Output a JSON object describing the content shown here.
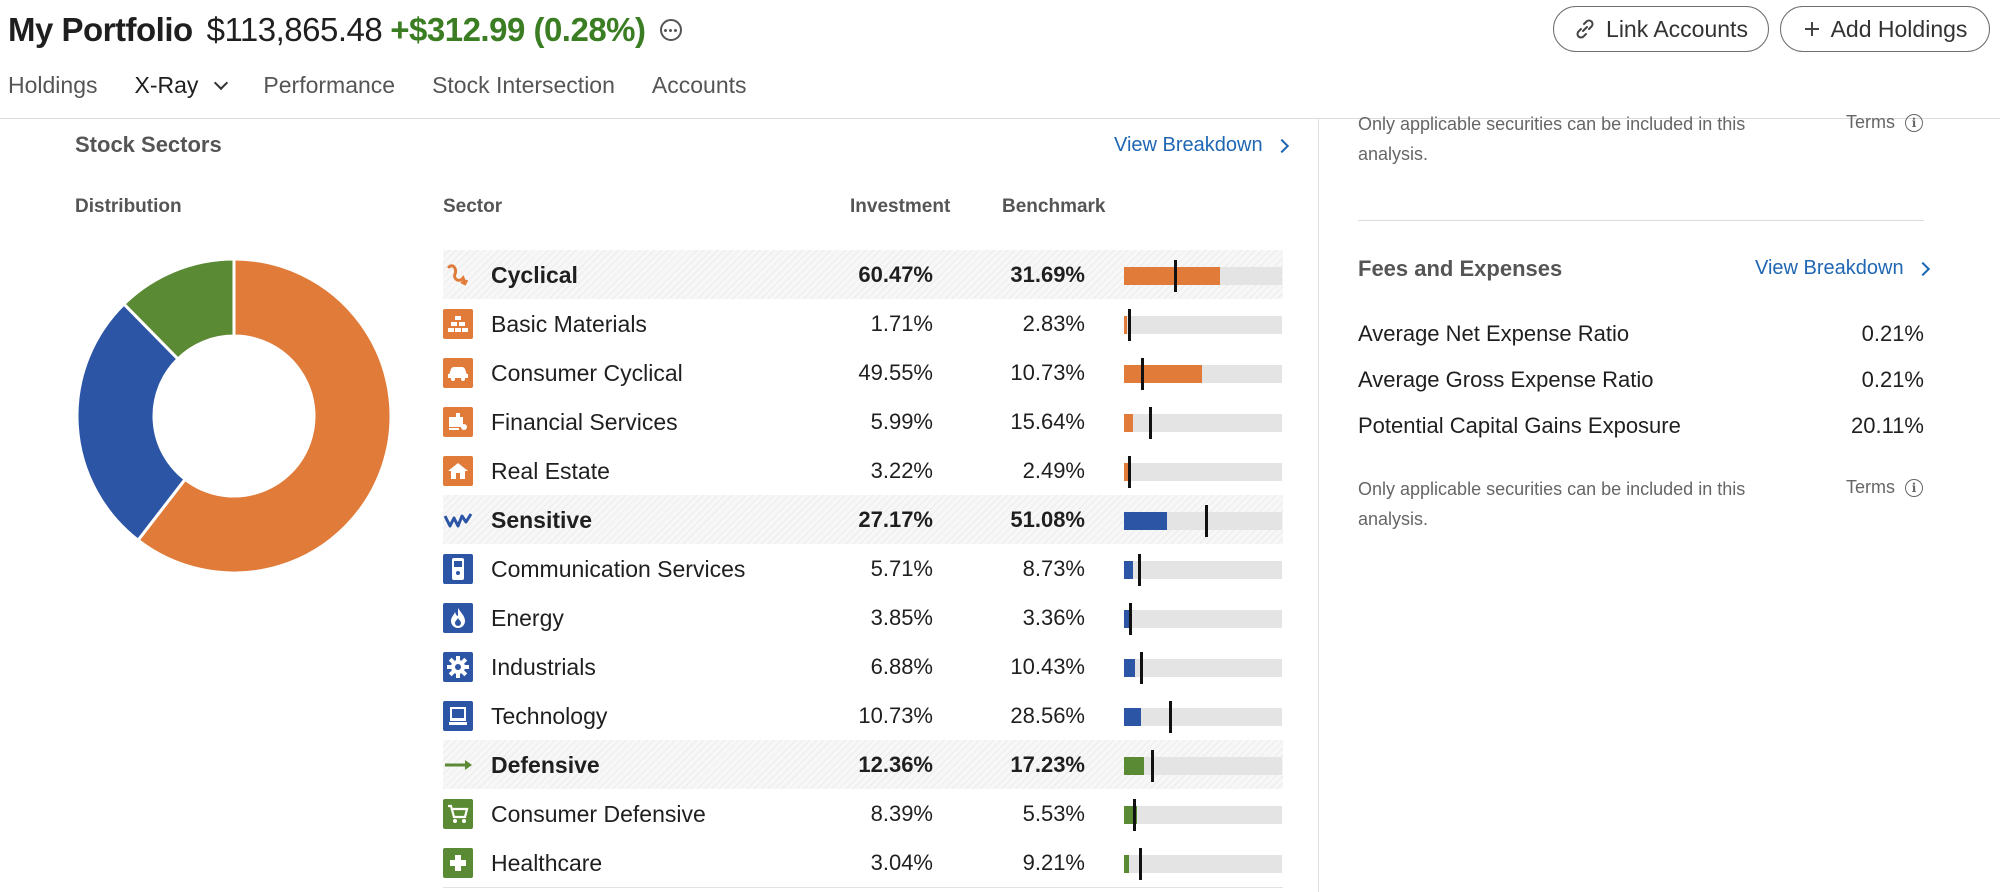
{
  "portfolio": {
    "name": "My Portfolio",
    "value": "$113,865.48",
    "change": "+$312.99 (0.28%)"
  },
  "header_buttons": {
    "link_accounts": "Link Accounts",
    "add_holdings": "Add Holdings"
  },
  "tabs": [
    {
      "label": "Holdings"
    },
    {
      "label": "X-Ray"
    },
    {
      "label": "Performance"
    },
    {
      "label": "Stock Intersection"
    },
    {
      "label": "Accounts"
    }
  ],
  "stock_sectors": {
    "title": "Stock Sectors",
    "view_breakdown": "View Breakdown",
    "distribution_label": "Distribution",
    "col_sector": "Sector",
    "col_investment": "Investment",
    "col_benchmark": "Benchmark"
  },
  "colors": {
    "cyclical": "#e07b39",
    "sensitive": "#2d55a6",
    "defensive": "#5b8a34",
    "positive_change": "#3b7d23",
    "link": "#1f66b3"
  },
  "sectors": [
    {
      "name": "Cyclical",
      "investment": "60.47%",
      "benchmark": "31.69%",
      "inv_value": 60.47,
      "bm_value": 31.69,
      "group": "cyclical",
      "header": true,
      "icon": "cyclical-icon"
    },
    {
      "name": "Basic Materials",
      "investment": "1.71%",
      "benchmark": "2.83%",
      "inv_value": 1.71,
      "bm_value": 2.83,
      "group": "cyclical",
      "header": false,
      "icon": "basic-materials-icon"
    },
    {
      "name": "Consumer Cyclical",
      "investment": "49.55%",
      "benchmark": "10.73%",
      "inv_value": 49.55,
      "bm_value": 10.73,
      "group": "cyclical",
      "header": false,
      "icon": "car-icon"
    },
    {
      "name": "Financial Services",
      "investment": "5.99%",
      "benchmark": "15.64%",
      "inv_value": 5.99,
      "bm_value": 15.64,
      "group": "cyclical",
      "header": false,
      "icon": "financial-services-icon"
    },
    {
      "name": "Real Estate",
      "investment": "3.22%",
      "benchmark": "2.49%",
      "inv_value": 3.22,
      "bm_value": 2.49,
      "group": "cyclical",
      "header": false,
      "icon": "house-icon"
    },
    {
      "name": "Sensitive",
      "investment": "27.17%",
      "benchmark": "51.08%",
      "inv_value": 27.17,
      "bm_value": 51.08,
      "group": "sensitive",
      "header": true,
      "icon": "sensitive-icon"
    },
    {
      "name": "Communication Services",
      "investment": "5.71%",
      "benchmark": "8.73%",
      "inv_value": 5.71,
      "bm_value": 8.73,
      "group": "sensitive",
      "header": false,
      "icon": "phone-icon"
    },
    {
      "name": "Energy",
      "investment": "3.85%",
      "benchmark": "3.36%",
      "inv_value": 3.85,
      "bm_value": 3.36,
      "group": "sensitive",
      "header": false,
      "icon": "flame-icon"
    },
    {
      "name": "Industrials",
      "investment": "6.88%",
      "benchmark": "10.43%",
      "inv_value": 6.88,
      "bm_value": 10.43,
      "group": "sensitive",
      "header": false,
      "icon": "gear-icon"
    },
    {
      "name": "Technology",
      "investment": "10.73%",
      "benchmark": "28.56%",
      "inv_value": 10.73,
      "bm_value": 28.56,
      "group": "sensitive",
      "header": false,
      "icon": "computer-icon"
    },
    {
      "name": "Defensive",
      "investment": "12.36%",
      "benchmark": "17.23%",
      "inv_value": 12.36,
      "bm_value": 17.23,
      "group": "defensive",
      "header": true,
      "icon": "defensive-arrow-icon"
    },
    {
      "name": "Consumer Defensive",
      "investment": "8.39%",
      "benchmark": "5.53%",
      "inv_value": 8.39,
      "bm_value": 5.53,
      "group": "defensive",
      "header": false,
      "icon": "cart-icon"
    },
    {
      "name": "Healthcare",
      "investment": "3.04%",
      "benchmark": "9.21%",
      "inv_value": 3.04,
      "bm_value": 9.21,
      "group": "defensive",
      "header": false,
      "icon": "medical-cross-icon"
    }
  ],
  "distribution": [
    {
      "group": "cyclical",
      "value": 60.47
    },
    {
      "group": "sensitive",
      "value": 27.17
    },
    {
      "group": "defensive",
      "value": 12.36
    }
  ],
  "right_panel": {
    "note_top": "Only applicable securities can be included in this analysis.",
    "terms_label": "Terms",
    "fees_title": "Fees and Expenses",
    "fees_view_breakdown": "View Breakdown",
    "fees": [
      {
        "label": "Average Net Expense Ratio",
        "value": "0.21%"
      },
      {
        "label": "Average Gross Expense Ratio",
        "value": "0.21%"
      },
      {
        "label": "Potential Capital Gains Exposure",
        "value": "20.11%"
      }
    ],
    "note_bottom": "Only applicable securities can be included in this analysis."
  }
}
